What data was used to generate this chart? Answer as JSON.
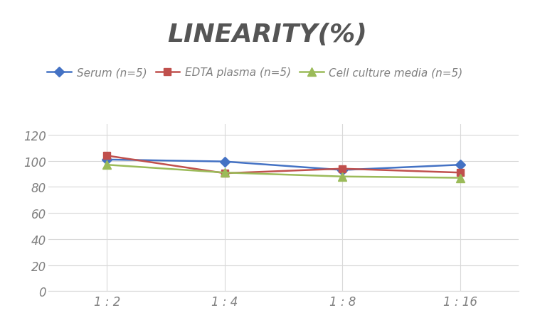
{
  "title": "LINEARITY(%)",
  "x_labels": [
    "1 : 2",
    "1 : 4",
    "1 : 8",
    "1 : 16"
  ],
  "x_positions": [
    0,
    1,
    2,
    3
  ],
  "series": [
    {
      "label": "Serum (n=5)",
      "values": [
        101,
        99.5,
        93,
        97
      ],
      "color": "#4472C4",
      "marker": "D",
      "marker_size": 7,
      "linewidth": 1.8
    },
    {
      "label": "EDTA plasma (n=5)",
      "values": [
        104,
        90.5,
        94,
        91
      ],
      "color": "#C0504D",
      "marker": "s",
      "marker_size": 7,
      "linewidth": 1.8
    },
    {
      "label": "Cell culture media (n=5)",
      "values": [
        97,
        91,
        88,
        87
      ],
      "color": "#9BBB59",
      "marker": "^",
      "marker_size": 8,
      "linewidth": 1.8
    }
  ],
  "ylim": [
    0,
    128
  ],
  "yticks": [
    0,
    20,
    40,
    60,
    80,
    100,
    120
  ],
  "title_fontsize": 26,
  "title_color": "#555555",
  "legend_fontsize": 11,
  "tick_fontsize": 12,
  "tick_color": "#808080",
  "grid_color": "#d8d8d8",
  "background_color": "#ffffff"
}
